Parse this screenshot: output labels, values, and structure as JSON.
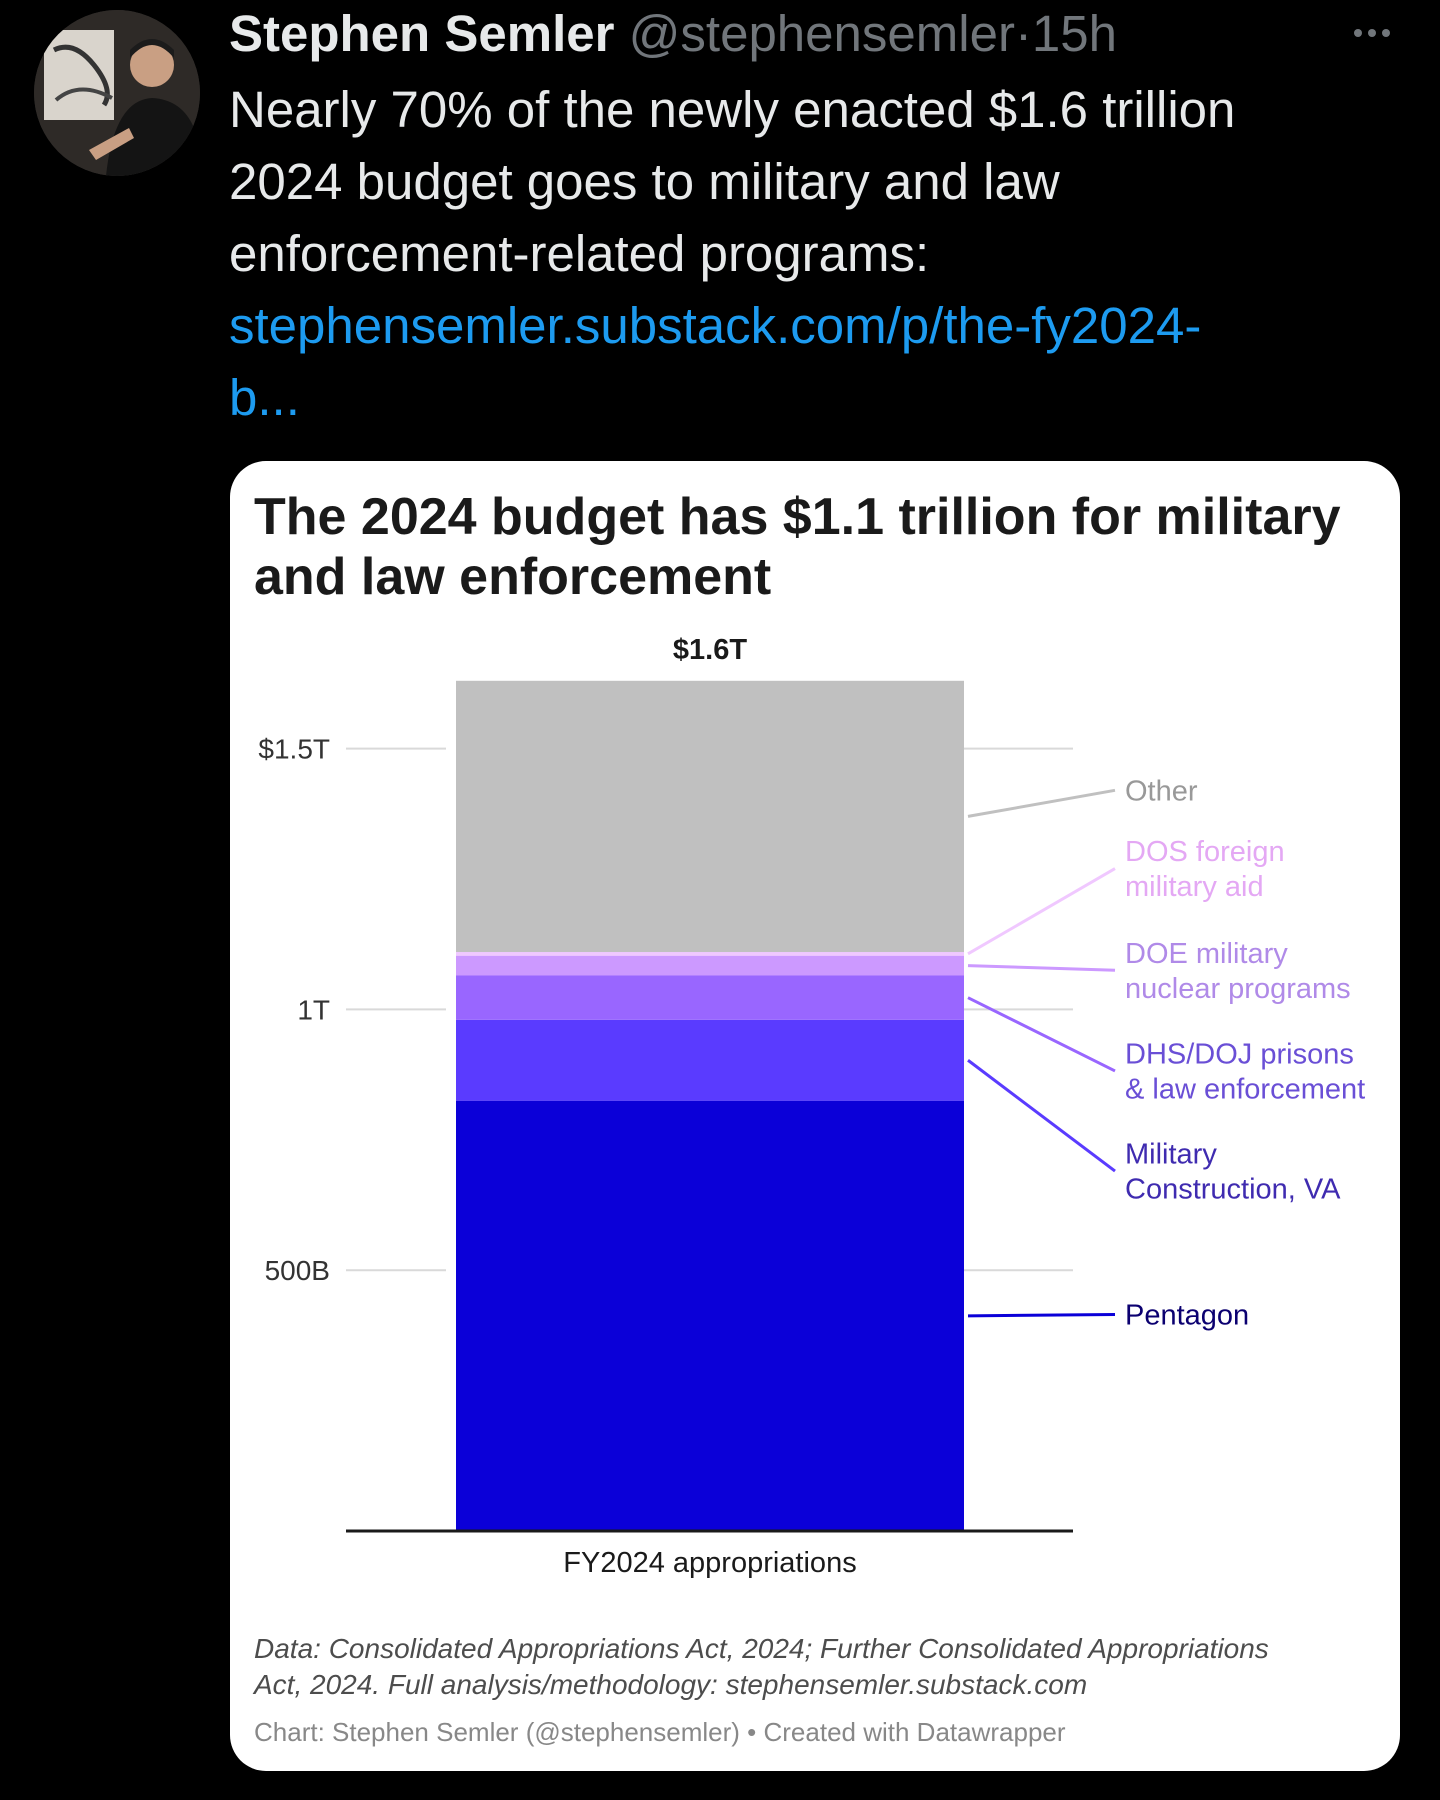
{
  "tweet": {
    "author_name": "Stephen Semler",
    "handle": "@stephensemler",
    "separator": "·",
    "time": "15h",
    "text_lines": [
      "Nearly 70% of the newly enacted $1.6 trillion",
      "2024 budget goes to military and law",
      "enforcement-related programs:"
    ],
    "link_lines": [
      "stephensemler.substack.com/p/the-fy2024-",
      "b..."
    ],
    "more_icon": "more-horizontal-icon"
  },
  "chart_data": {
    "type": "bar",
    "stacked": true,
    "title": "The 2024 budget has $1.1 trillion for military and law enforcement",
    "title_lines": [
      "The 2024 budget has $1.1 trillion for military",
      "and law enforcement"
    ],
    "categories": [
      "FY2024 appropriations"
    ],
    "total_label": "$1.6T",
    "ylim": [
      0,
      1640
    ],
    "yticks": [
      {
        "value": 500,
        "label": "500B"
      },
      {
        "value": 1000,
        "label": "1T"
      },
      {
        "value": 1500,
        "label": "$1.5T"
      }
    ],
    "series": [
      {
        "name": "Pentagon",
        "value": 825,
        "color": "#0b00d8",
        "label_color": "#0b0070",
        "label_lines": [
          "Pentagon"
        ],
        "label_value": 415
      },
      {
        "name": "Military Construction, VA",
        "value": 155,
        "color": "#5a3bff",
        "label_color": "#3f2bb0",
        "label_lines": [
          "Military",
          "Construction, VA"
        ],
        "label_value": 690
      },
      {
        "name": "DHS/DOJ prisons & law enforcement",
        "value": 85,
        "color": "#9966ff",
        "label_color": "#6a4fd6",
        "label_lines": [
          "DHS/DOJ prisons",
          "& law enforcement"
        ],
        "label_value": 882
      },
      {
        "name": "DOE military nuclear programs",
        "value": 38,
        "color": "#cc99ff",
        "label_color": "#b08ae8",
        "label_lines": [
          "DOE military",
          "nuclear programs"
        ],
        "label_value": 1075
      },
      {
        "name": "DOS foreign military aid",
        "value": 7,
        "color": "#f0c8ff",
        "label_color": "#e4a8f4",
        "label_lines": [
          "DOS foreign",
          "military aid"
        ],
        "label_value": 1270
      },
      {
        "name": "Other",
        "value": 520,
        "color": "#c0c0c0",
        "label_color": "#999999",
        "label_lines": [
          "Other"
        ],
        "label_value": 1420
      }
    ],
    "notes_lines": [
      "Data: Consolidated Appropriations Act, 2024; Further Consolidated Appropriations",
      "Act, 2024. Full analysis/methodology: stephensemler.substack.com"
    ],
    "credit": "Chart: Stephen Semler (@stephensemler) • Created with Datawrapper"
  }
}
